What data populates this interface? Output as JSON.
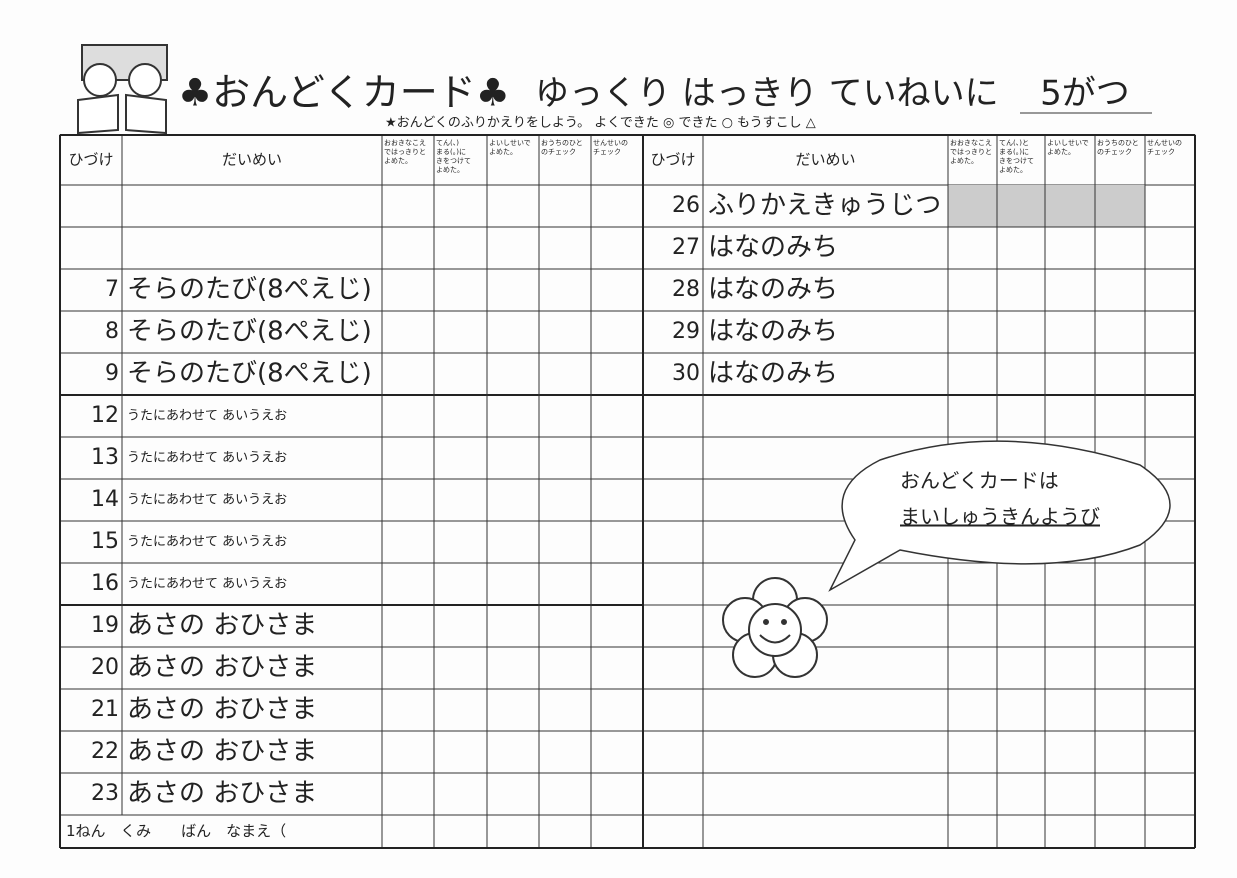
{
  "header": {
    "title": "♣おんどくカード♣",
    "motto": "ゆっくり はっきり ていねいに",
    "month": "5がつ",
    "instruction": "★おんどくのふりかえりをしよう。 よくできた ◎ できた ○ もうすこし △"
  },
  "left_table": {
    "headers": {
      "date": "ひづけ",
      "title": "だいめい",
      "checks": [
        [
          "おおきなこえ",
          "ではっきりと",
          "よめた。"
        ],
        [
          "てん(、)",
          "まる(。)に",
          "きをつけて",
          "よめた。"
        ],
        [
          "よいしせいで",
          "よめた。"
        ],
        [
          "おうちのひと",
          "のチェック"
        ],
        [
          "せんせいの",
          "チェック"
        ]
      ]
    },
    "rows": [
      null,
      null,
      {
        "date": "7",
        "title": "そらのたび(8ぺえじ)"
      },
      {
        "date": "8",
        "title": "そらのたび(8ぺえじ)"
      },
      {
        "date": "9",
        "title": "そらのたび(8ぺえじ)"
      },
      {
        "date": "12",
        "title": "うたにあわせて あいうえお"
      },
      {
        "date": "13",
        "title": "うたにあわせて あいうえお"
      },
      {
        "date": "14",
        "title": "うたにあわせて あいうえお"
      },
      {
        "date": "15",
        "title": "うたにあわせて あいうえお"
      },
      {
        "date": "16",
        "title": "うたにあわせて あいうえお"
      },
      {
        "date": "19",
        "title": "あさの おひさま"
      },
      {
        "date": "20",
        "title": "あさの おひさま"
      },
      {
        "date": "21",
        "title": "あさの おひさま"
      },
      {
        "date": "22",
        "title": "あさの おひさま"
      },
      {
        "date": "23",
        "title": "あさの おひさま"
      }
    ]
  },
  "right_table": {
    "headers": {
      "date": "ひづけ",
      "title": "だいめい",
      "checks": [
        [
          "おおきなこえ",
          "ではっきりと",
          "よめた。"
        ],
        [
          "てん(、)と",
          "まる(。)に",
          "きをつけて",
          "よめた。"
        ],
        [
          "よいしせいで",
          "よめた。"
        ],
        [
          "おうちのひと",
          "のチェック"
        ],
        [
          "せんせいの",
          "チェック"
        ]
      ]
    },
    "rows": [
      {
        "date": "26",
        "title": "ふりかえきゅうじつ"
      },
      {
        "date": "27",
        "title": "はなのみち"
      },
      {
        "date": "28",
        "title": "はなのみち"
      },
      {
        "date": "29",
        "title": "はなのみち"
      },
      {
        "date": "30",
        "title": "はなのみち"
      }
    ]
  },
  "footer": "1ねん　くみ　　ばん　なまえ（",
  "bubble": {
    "line1": "おんどくカードは",
    "line2": "まいしゅうきんようび"
  }
}
